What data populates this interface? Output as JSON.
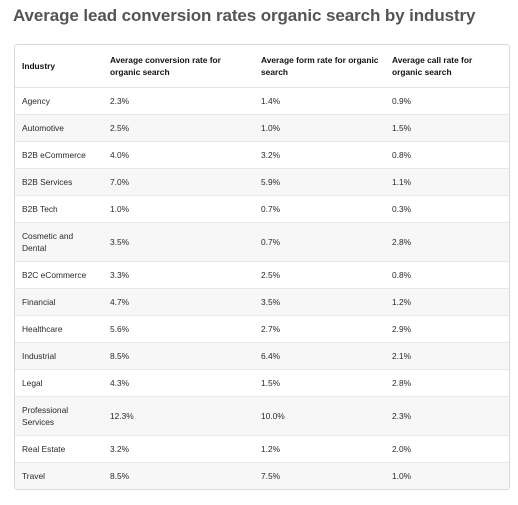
{
  "title": "Average lead conversion rates organic search by industry",
  "table": {
    "headers": [
      "Industry",
      "Average conversion rate for organic search",
      "Average form rate for organic search",
      "Average call rate for organic search"
    ],
    "rows": [
      [
        "Agency",
        "2.3%",
        "1.4%",
        "0.9%"
      ],
      [
        "Automotive",
        "2.5%",
        "1.0%",
        "1.5%"
      ],
      [
        "B2B eCommerce",
        "4.0%",
        "3.2%",
        "0.8%"
      ],
      [
        "B2B Services",
        "7.0%",
        "5.9%",
        "1.1%"
      ],
      [
        "B2B Tech",
        "1.0%",
        "0.7%",
        "0.3%"
      ],
      [
        "Cosmetic and Dental",
        "3.5%",
        "0.7%",
        "2.8%"
      ],
      [
        "B2C eCommerce",
        "3.3%",
        "2.5%",
        "0.8%"
      ],
      [
        "Financial",
        "4.7%",
        "3.5%",
        "1.2%"
      ],
      [
        "Healthcare",
        "5.6%",
        "2.7%",
        "2.9%"
      ],
      [
        "Industrial",
        "8.5%",
        "6.4%",
        "2.1%"
      ],
      [
        "Legal",
        "4.3%",
        "1.5%",
        "2.8%"
      ],
      [
        "Professional Services",
        "12.3%",
        "10.0%",
        "2.3%"
      ],
      [
        "Real Estate",
        "3.2%",
        "1.2%",
        "2.0%"
      ],
      [
        "Travel",
        "8.5%",
        "7.5%",
        "1.0%"
      ]
    ]
  }
}
